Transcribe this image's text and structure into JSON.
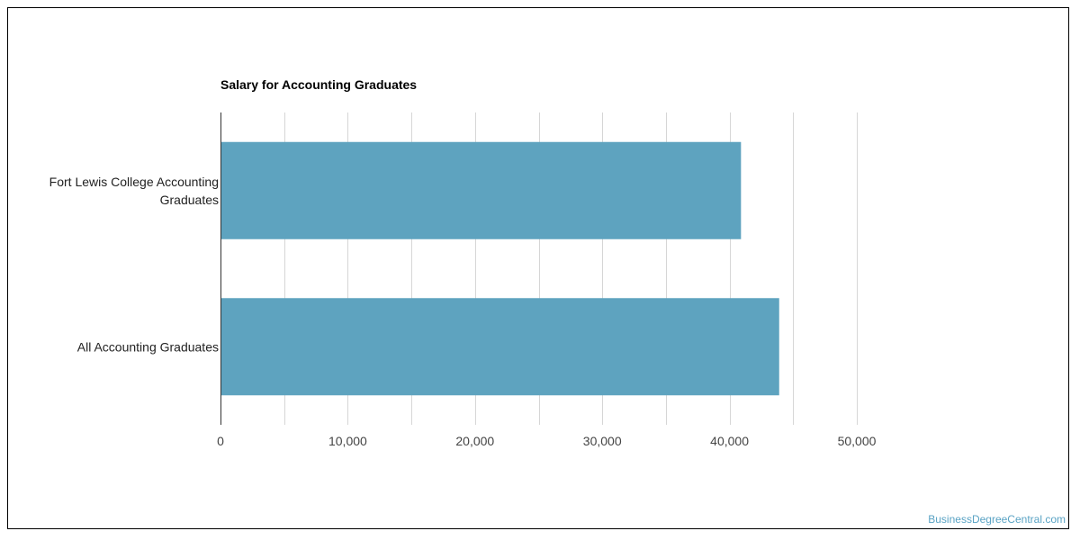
{
  "chart_data": {
    "type": "bar",
    "orientation": "horizontal",
    "title": "Salary for Accounting Graduates",
    "categories": [
      [
        "Fort Lewis College Accounting",
        "Graduates"
      ],
      [
        "All Accounting Graduates"
      ]
    ],
    "values": [
      40900,
      43900
    ],
    "xlim": [
      0,
      50000
    ],
    "xticks": [
      0,
      10000,
      20000,
      30000,
      40000,
      50000
    ],
    "xtick_labels": [
      "0",
      "10,000",
      "20,000",
      "30,000",
      "40,000",
      "50,000"
    ],
    "grid": true,
    "bar_color": "#5ea3bf"
  },
  "watermark": "BusinessDegreeCentral.com"
}
